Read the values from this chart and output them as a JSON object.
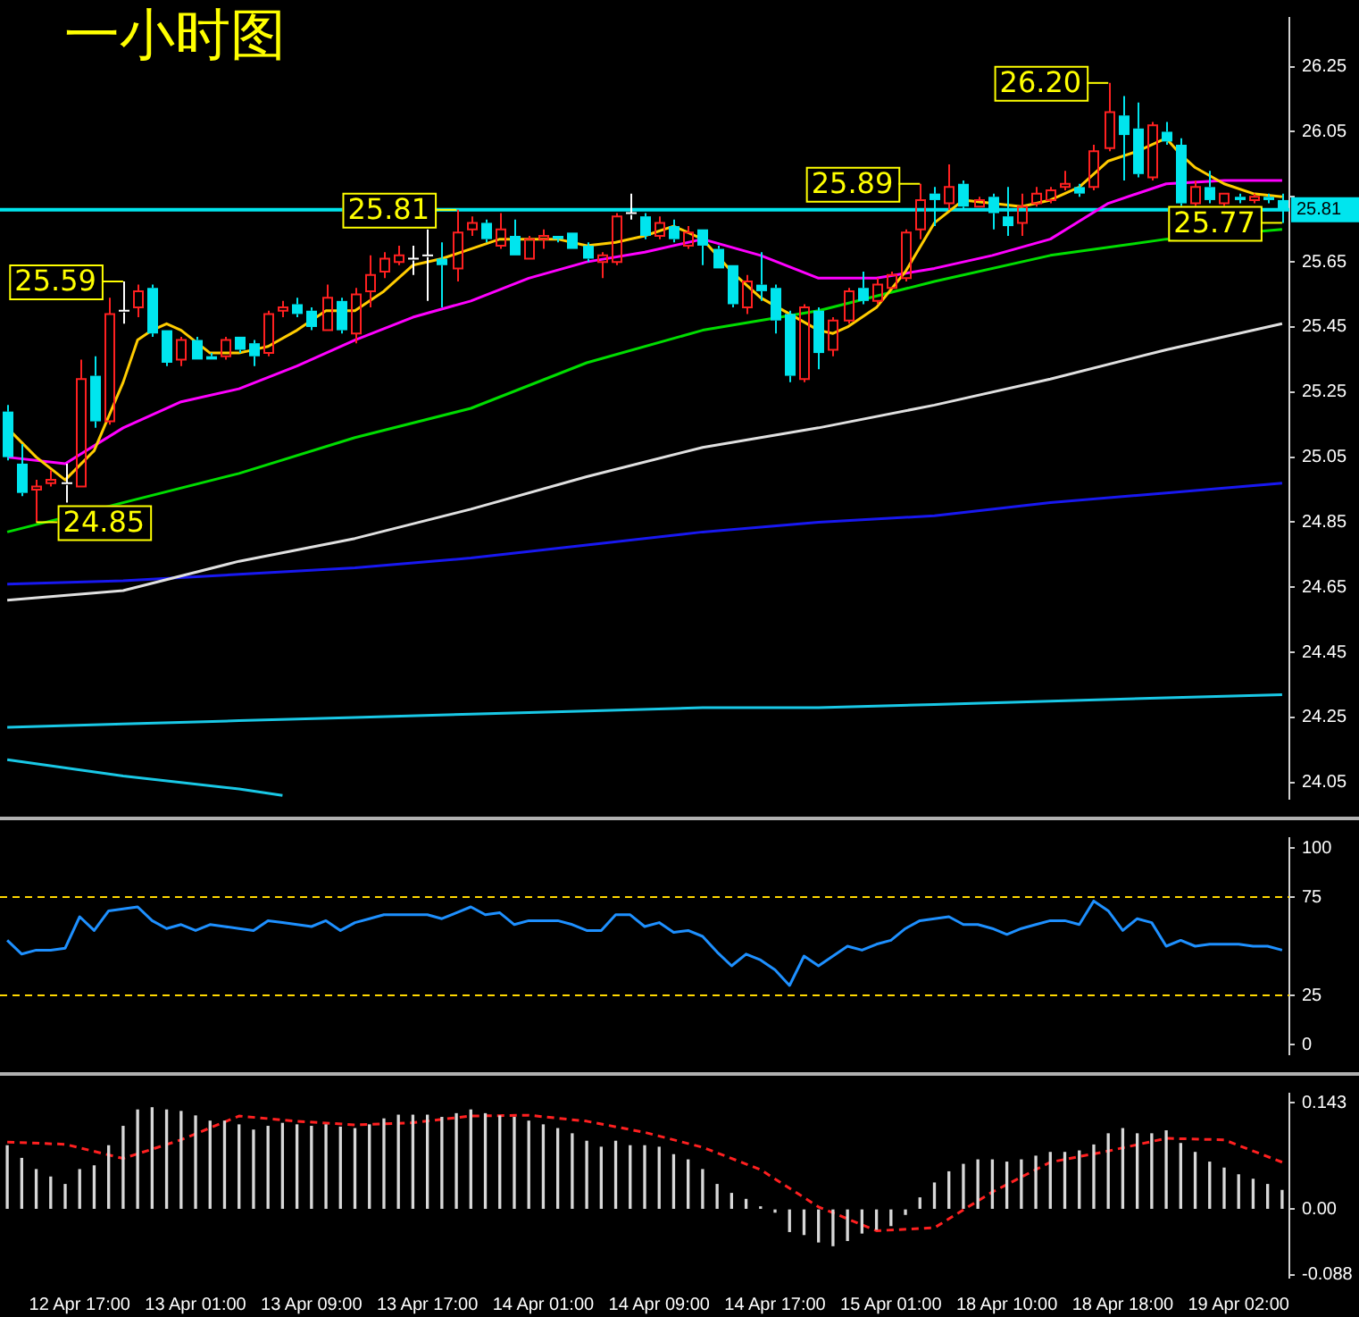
{
  "chart_data": [
    {
      "type": "candlestick",
      "title": "一小时图",
      "tick_labels": "y",
      "categories": [
        null,
        null,
        null,
        null,
        null,
        null,
        null,
        null,
        null,
        null,
        null,
        null,
        null,
        null,
        null,
        null,
        null,
        null,
        null,
        null,
        null,
        null,
        null,
        null,
        null,
        null,
        null,
        null,
        null,
        null,
        null,
        null,
        null,
        null,
        null,
        null,
        null,
        null,
        null,
        null,
        null,
        null,
        null,
        null,
        null,
        null,
        null,
        null,
        null,
        null,
        null,
        null,
        null,
        null,
        null,
        null,
        null,
        null,
        null,
        null,
        null,
        null,
        null,
        null,
        null,
        null,
        null,
        null,
        null,
        null,
        null,
        null,
        null,
        null,
        null,
        null,
        null,
        null,
        null,
        null,
        null,
        null,
        null,
        null,
        null,
        null,
        null,
        null,
        null
      ],
      "ohlc": [
        [
          25.19,
          25.21,
          25.04,
          25.05
        ],
        [
          25.03,
          25.09,
          24.93,
          24.94
        ],
        [
          24.95,
          24.98,
          24.85,
          24.96
        ],
        [
          24.97,
          25.01,
          24.96,
          24.98
        ],
        [
          24.97,
          25.03,
          24.91,
          24.97
        ],
        [
          24.96,
          25.35,
          24.96,
          25.29
        ],
        [
          25.3,
          25.36,
          25.14,
          25.16
        ],
        [
          25.16,
          25.54,
          25.15,
          25.49
        ],
        [
          25.5,
          25.59,
          25.46,
          25.5
        ],
        [
          25.51,
          25.58,
          25.48,
          25.56
        ],
        [
          25.57,
          25.58,
          25.42,
          25.43
        ],
        [
          25.44,
          25.44,
          25.33,
          25.34
        ],
        [
          25.35,
          25.42,
          25.33,
          25.41
        ],
        [
          25.41,
          25.42,
          25.35,
          25.35
        ],
        [
          25.36,
          25.37,
          25.35,
          25.35
        ],
        [
          25.36,
          25.42,
          25.35,
          25.41
        ],
        [
          25.42,
          25.42,
          25.37,
          25.38
        ],
        [
          25.4,
          25.41,
          25.33,
          25.36
        ],
        [
          25.37,
          25.5,
          25.36,
          25.49
        ],
        [
          25.5,
          25.53,
          25.48,
          25.51
        ],
        [
          25.52,
          25.54,
          25.48,
          25.49
        ],
        [
          25.5,
          25.51,
          25.44,
          25.45
        ],
        [
          25.44,
          25.58,
          25.44,
          25.54
        ],
        [
          25.53,
          25.54,
          25.43,
          25.44
        ],
        [
          25.43,
          25.57,
          25.4,
          25.55
        ],
        [
          25.56,
          25.67,
          25.51,
          25.61
        ],
        [
          25.62,
          25.68,
          25.6,
          25.66
        ],
        [
          25.65,
          25.7,
          25.64,
          25.67
        ],
        [
          25.66,
          25.7,
          25.61,
          25.66
        ],
        [
          25.67,
          25.75,
          25.53,
          25.67
        ],
        [
          25.66,
          25.71,
          25.51,
          25.64
        ],
        [
          25.63,
          25.81,
          25.59,
          25.74
        ],
        [
          25.75,
          25.79,
          25.73,
          25.77
        ],
        [
          25.77,
          25.78,
          25.71,
          25.72
        ],
        [
          25.7,
          25.8,
          25.69,
          25.75
        ],
        [
          25.73,
          25.78,
          25.67,
          25.67
        ],
        [
          25.66,
          25.73,
          25.66,
          25.72
        ],
        [
          25.72,
          25.75,
          25.69,
          25.73
        ],
        [
          25.73,
          25.73,
          25.71,
          25.72
        ],
        [
          25.74,
          25.74,
          25.69,
          25.69
        ],
        [
          25.7,
          25.71,
          25.65,
          25.66
        ],
        [
          25.65,
          25.68,
          25.6,
          25.67
        ],
        [
          25.65,
          25.8,
          25.64,
          25.79
        ],
        [
          25.8,
          25.86,
          25.78,
          25.8
        ],
        [
          25.79,
          25.8,
          25.72,
          25.73
        ],
        [
          25.73,
          25.79,
          25.72,
          25.77
        ],
        [
          25.76,
          25.78,
          25.71,
          25.72
        ],
        [
          25.7,
          25.76,
          25.69,
          25.74
        ],
        [
          25.75,
          25.75,
          25.64,
          25.7
        ],
        [
          25.69,
          25.7,
          25.63,
          25.63
        ],
        [
          25.64,
          25.64,
          25.51,
          25.52
        ],
        [
          25.51,
          25.61,
          25.49,
          25.59
        ],
        [
          25.58,
          25.68,
          25.53,
          25.56
        ],
        [
          25.57,
          25.58,
          25.43,
          25.47
        ],
        [
          25.49,
          25.5,
          25.28,
          25.3
        ],
        [
          25.29,
          25.52,
          25.28,
          25.51
        ],
        [
          25.5,
          25.51,
          25.32,
          25.37
        ],
        [
          25.38,
          25.48,
          25.36,
          25.47
        ],
        [
          25.47,
          25.57,
          25.46,
          25.56
        ],
        [
          25.57,
          25.62,
          25.52,
          25.53
        ],
        [
          25.53,
          25.6,
          25.52,
          25.58
        ],
        [
          25.57,
          25.62,
          25.57,
          25.61
        ],
        [
          25.6,
          25.75,
          25.59,
          25.74
        ],
        [
          25.75,
          25.89,
          25.72,
          25.84
        ],
        [
          25.86,
          25.88,
          25.76,
          25.84
        ],
        [
          25.83,
          25.95,
          25.81,
          25.88
        ],
        [
          25.89,
          25.9,
          25.81,
          25.82
        ],
        [
          25.82,
          25.85,
          25.82,
          25.84
        ],
        [
          25.85,
          25.86,
          25.75,
          25.8
        ],
        [
          25.79,
          25.88,
          25.73,
          25.76
        ],
        [
          25.77,
          25.86,
          25.73,
          25.82
        ],
        [
          25.83,
          25.88,
          25.82,
          25.86
        ],
        [
          25.84,
          25.88,
          25.83,
          25.87
        ],
        [
          25.88,
          25.93,
          25.87,
          25.89
        ],
        [
          25.88,
          25.89,
          25.85,
          25.86
        ],
        [
          25.88,
          26.01,
          25.87,
          25.99
        ],
        [
          26.0,
          26.2,
          25.99,
          26.11
        ],
        [
          26.1,
          26.16,
          25.9,
          26.04
        ],
        [
          26.06,
          26.14,
          25.91,
          25.92
        ],
        [
          25.91,
          26.08,
          25.9,
          26.07
        ],
        [
          26.05,
          26.08,
          26.01,
          26.02
        ],
        [
          26.01,
          26.03,
          25.82,
          25.83
        ],
        [
          25.83,
          25.9,
          25.82,
          25.88
        ],
        [
          25.88,
          25.93,
          25.83,
          25.84
        ],
        [
          25.83,
          25.86,
          25.82,
          25.86
        ],
        [
          25.85,
          25.86,
          25.83,
          25.84
        ],
        [
          25.84,
          25.86,
          25.83,
          25.85
        ],
        [
          25.85,
          25.86,
          25.83,
          25.84
        ],
        [
          25.84,
          25.86,
          25.77,
          25.81
        ]
      ],
      "colors": [
        "#00e5ee",
        "#00e5ee",
        "#ff2020",
        "#ff2020",
        "#ffffff",
        "#ff2020",
        "#00e5ee",
        "#ff2020",
        "#ffffff",
        "#ff2020",
        "#00e5ee",
        "#00e5ee",
        "#ff2020",
        "#00e5ee",
        "#00e5ee",
        "#ff2020",
        "#00e5ee",
        "#00e5ee",
        "#ff2020",
        "#ff2020",
        "#00e5ee",
        "#00e5ee",
        "#ff2020",
        "#00e5ee",
        "#ff2020",
        "#ff2020",
        "#ff2020",
        "#ff2020",
        "#ffffff",
        "#ffffff",
        "#00e5ee",
        "#ff2020",
        "#ff2020",
        "#00e5ee",
        "#ff2020",
        "#00e5ee",
        "#ff2020",
        "#ff2020",
        "#00e5ee",
        "#00e5ee",
        "#00e5ee",
        "#ff2020",
        "#ff2020",
        "#ffffff",
        "#00e5ee",
        "#ff2020",
        "#00e5ee",
        "#ff2020",
        "#00e5ee",
        "#00e5ee",
        "#00e5ee",
        "#ff2020",
        "#00e5ee",
        "#00e5ee",
        "#00e5ee",
        "#ff2020",
        "#00e5ee",
        "#ff2020",
        "#ff2020",
        "#00e5ee",
        "#ff2020",
        "#ff2020",
        "#ff2020",
        "#ff2020",
        "#00e5ee",
        "#ff2020",
        "#00e5ee",
        "#ff2020",
        "#00e5ee",
        "#00e5ee",
        "#ff2020",
        "#ff2020",
        "#ff2020",
        "#ff2020",
        "#00e5ee",
        "#ff2020",
        "#ff2020",
        "#00e5ee",
        "#00e5ee",
        "#ff2020",
        "#00e5ee",
        "#00e5ee",
        "#ff2020",
        "#00e5ee",
        "#ff2020",
        "#00e5ee",
        "#ff2020",
        "#00e5ee",
        "#00e5ee"
      ],
      "series": [
        {
          "type": "line",
          "color": "#ffcc00",
          "values": [
            25.14,
            null,
            25.05,
            null,
            24.98,
            null,
            25.07,
            null,
            25.28,
            25.41,
            25.44,
            25.46,
            25.44,
            null,
            25.37,
            null,
            25.37,
            null,
            25.39,
            null,
            25.44,
            null,
            25.5,
            null,
            25.5,
            null,
            25.56,
            null,
            25.64,
            null,
            25.66,
            null,
            25.69,
            null,
            25.72,
            null,
            25.72,
            null,
            25.72,
            null,
            25.7,
            null,
            25.71,
            null,
            25.73,
            null,
            25.76,
            null,
            25.72,
            null,
            25.62,
            null,
            25.54,
            null,
            25.49,
            null,
            25.44,
            25.43,
            25.45,
            null,
            25.51,
            null,
            25.62,
            null,
            25.77,
            null,
            25.84,
            null,
            25.83,
            null,
            25.82,
            null,
            25.84,
            null,
            25.88,
            null,
            25.96,
            null,
            25.99,
            null,
            26.03,
            25.98,
            25.94,
            null,
            25.89,
            null,
            25.86,
            null,
            25.85
          ]
        },
        {
          "type": "line",
          "color": "#ff00ff",
          "values": [
            25.05,
            null,
            null,
            null,
            25.03,
            null,
            null,
            null,
            25.14,
            null,
            null,
            null,
            25.22,
            null,
            null,
            null,
            25.26,
            null,
            null,
            null,
            25.33,
            null,
            null,
            null,
            25.41,
            null,
            null,
            null,
            25.48,
            null,
            null,
            null,
            25.53,
            null,
            null,
            null,
            25.6,
            null,
            null,
            null,
            25.65,
            null,
            null,
            null,
            25.68,
            null,
            null,
            null,
            25.72,
            null,
            null,
            null,
            25.67,
            null,
            null,
            null,
            25.6,
            null,
            null,
            null,
            25.6,
            null,
            null,
            null,
            25.63,
            null,
            null,
            null,
            25.67,
            null,
            null,
            null,
            25.72,
            null,
            null,
            null,
            25.83,
            null,
            null,
            null,
            25.89,
            null,
            null,
            null,
            25.9,
            null,
            null,
            null,
            25.9
          ]
        },
        {
          "type": "line",
          "color": "#00dd00",
          "values": [
            24.82,
            null,
            null,
            null,
            null,
            null,
            null,
            null,
            null,
            null,
            null,
            null,
            null,
            null,
            null,
            null,
            25.0,
            null,
            null,
            null,
            null,
            null,
            null,
            null,
            25.11,
            null,
            null,
            null,
            null,
            null,
            null,
            null,
            25.2,
            null,
            null,
            null,
            null,
            null,
            null,
            null,
            25.34,
            null,
            null,
            null,
            null,
            null,
            null,
            null,
            25.44,
            null,
            null,
            null,
            null,
            null,
            null,
            null,
            25.5,
            null,
            null,
            null,
            null,
            null,
            null,
            null,
            25.59,
            null,
            null,
            null,
            null,
            null,
            null,
            null,
            25.67,
            null,
            null,
            null,
            null,
            null,
            null,
            null,
            25.72,
            null,
            null,
            null,
            null,
            null,
            null,
            null,
            25.75
          ]
        },
        {
          "type": "line",
          "color": "#e0e0e0",
          "values": [
            24.61,
            null,
            null,
            null,
            null,
            null,
            null,
            null,
            24.64,
            null,
            null,
            null,
            null,
            null,
            null,
            null,
            24.73,
            null,
            null,
            null,
            null,
            null,
            null,
            null,
            24.8,
            null,
            null,
            null,
            null,
            null,
            null,
            null,
            24.89,
            null,
            null,
            null,
            null,
            null,
            null,
            null,
            24.99,
            null,
            null,
            null,
            null,
            null,
            null,
            null,
            25.08,
            null,
            null,
            null,
            null,
            null,
            null,
            null,
            25.14,
            null,
            null,
            null,
            null,
            null,
            null,
            null,
            25.21,
            null,
            null,
            null,
            null,
            null,
            null,
            null,
            25.29,
            null,
            null,
            null,
            null,
            null,
            null,
            null,
            25.38,
            null,
            null,
            null,
            null,
            null,
            null,
            null,
            25.46
          ]
        },
        {
          "type": "line",
          "color": "#1818f0",
          "values": [
            24.66,
            null,
            null,
            null,
            null,
            null,
            null,
            null,
            24.67,
            null,
            null,
            null,
            null,
            null,
            null,
            null,
            24.69,
            null,
            null,
            null,
            null,
            null,
            null,
            null,
            24.71,
            null,
            null,
            null,
            null,
            null,
            null,
            null,
            24.74,
            null,
            null,
            null,
            null,
            null,
            null,
            null,
            24.78,
            null,
            null,
            null,
            null,
            null,
            null,
            null,
            24.82,
            null,
            null,
            null,
            null,
            null,
            null,
            null,
            24.85,
            null,
            null,
            null,
            null,
            null,
            null,
            null,
            24.87,
            null,
            null,
            null,
            null,
            null,
            null,
            null,
            24.91,
            null,
            null,
            null,
            null,
            null,
            null,
            null,
            24.94,
            null,
            null,
            null,
            null,
            null,
            null,
            null,
            24.97
          ]
        },
        {
          "type": "line",
          "color": "#19c8e6",
          "values": [
            24.22,
            null,
            null,
            null,
            null,
            null,
            null,
            null,
            24.23,
            null,
            null,
            null,
            null,
            null,
            null,
            null,
            24.24,
            null,
            null,
            null,
            null,
            null,
            null,
            null,
            24.25,
            null,
            null,
            null,
            null,
            null,
            null,
            null,
            24.26,
            null,
            null,
            null,
            null,
            null,
            null,
            null,
            24.27,
            null,
            null,
            null,
            null,
            null,
            null,
            null,
            24.28,
            null,
            null,
            null,
            null,
            null,
            null,
            null,
            24.28,
            null,
            null,
            null,
            null,
            null,
            null,
            null,
            24.29,
            null,
            null,
            null,
            null,
            null,
            null,
            null,
            24.3,
            null,
            null,
            null,
            null,
            null,
            null,
            null,
            24.31,
            null,
            null,
            null,
            null,
            null,
            null,
            null,
            24.32
          ]
        },
        {
          "type": "line",
          "color": "#19c8e6",
          "values": [
            24.12,
            null,
            null,
            null,
            null,
            null,
            null,
            null,
            24.07,
            null,
            null,
            null,
            null,
            null,
            null,
            null,
            24.03,
            null,
            null,
            24.01,
            null,
            null,
            null,
            null,
            null,
            null,
            null,
            null,
            null,
            null,
            null,
            null,
            null,
            null,
            null,
            null,
            null,
            null,
            null,
            null,
            null,
            null,
            null,
            null,
            null,
            null,
            null,
            null,
            null,
            null,
            null,
            null,
            null,
            null,
            null,
            null,
            null,
            null,
            null,
            null,
            null,
            null,
            null,
            null,
            null,
            null,
            null,
            null,
            null,
            null,
            null,
            null,
            null,
            null,
            null,
            null,
            null,
            null,
            null,
            null,
            null,
            null,
            null,
            null,
            null,
            null,
            null,
            null,
            null
          ]
        }
      ],
      "ylim": [
        24.0,
        26.4
      ],
      "yticks": [
        24.05,
        24.25,
        24.45,
        24.65,
        24.85,
        25.05,
        25.25,
        25.45,
        25.65,
        {
          "value": 25.85,
          "label": null
        },
        26.05,
        26.25
      ],
      "ref_lines": [
        {
          "axis": "y",
          "value": 25.81,
          "label": "25.81",
          "color": "#00e5ee"
        }
      ],
      "annotations": [
        "25.59",
        "24.85",
        "25.81",
        "25.89",
        "26.20",
        "25.77"
      ]
    },
    {
      "type": "line",
      "tick_labels": "y",
      "categories": [
        null,
        null,
        null,
        null,
        null,
        null,
        null,
        null,
        null,
        null,
        null,
        null,
        null,
        null,
        null,
        null,
        null,
        null,
        null,
        null,
        null,
        null,
        null,
        null,
        null,
        null,
        null,
        null,
        null,
        null,
        null,
        null,
        null,
        null,
        null,
        null,
        null,
        null,
        null,
        null,
        null,
        null,
        null,
        null,
        null,
        null,
        null,
        null,
        null,
        null,
        null,
        null,
        null,
        null,
        null,
        null,
        null,
        null,
        null,
        null,
        null,
        null,
        null,
        null,
        null,
        null,
        null,
        null,
        null,
        null,
        null,
        null,
        null,
        null,
        null,
        null,
        null,
        null,
        null,
        null,
        null,
        null,
        null,
        null,
        null,
        null,
        null,
        null,
        null
      ],
      "series": [
        {
          "color": "#1e90ff",
          "values": [
            53,
            46,
            48,
            48,
            49,
            65,
            58,
            68,
            69,
            70,
            63,
            59,
            61,
            58,
            61,
            60,
            59,
            58,
            63,
            62,
            61,
            60,
            63,
            58,
            62,
            64,
            66,
            66,
            66,
            66,
            64,
            67,
            70,
            66,
            67,
            61,
            63,
            63,
            63,
            61,
            58,
            58,
            66,
            66,
            60,
            62,
            57,
            58,
            55,
            47,
            40,
            46,
            43,
            38,
            30,
            45,
            40,
            45,
            50,
            48,
            51,
            53,
            59,
            63,
            64,
            65,
            61,
            61,
            59,
            56,
            59,
            61,
            63,
            63,
            61,
            73,
            68,
            58,
            64,
            62,
            50,
            53,
            50,
            51,
            51,
            51,
            50,
            50,
            48
          ]
        }
      ],
      "ylim": [
        -5,
        105
      ],
      "yticks": [
        0,
        25,
        75,
        100
      ],
      "ref_lines": [
        {
          "axis": "y",
          "value": 75,
          "color": "#ffd700",
          "line_style": "dashed"
        },
        {
          "axis": "y",
          "value": 25,
          "color": "#ffd700",
          "line_style": "dashed"
        }
      ]
    },
    {
      "type": "bar",
      "categories": [
        null,
        null,
        null,
        null,
        null,
        "12 Apr 17:00",
        null,
        null,
        null,
        null,
        null,
        null,
        null,
        "13 Apr 01:00",
        null,
        null,
        null,
        null,
        null,
        null,
        null,
        "13 Apr 09:00",
        null,
        null,
        null,
        null,
        null,
        null,
        null,
        "13 Apr 17:00",
        null,
        null,
        null,
        null,
        null,
        null,
        null,
        "14 Apr 01:00",
        null,
        null,
        null,
        null,
        null,
        null,
        null,
        "14 Apr 09:00",
        null,
        null,
        null,
        null,
        null,
        null,
        null,
        "14 Apr 17:00",
        null,
        null,
        null,
        null,
        null,
        null,
        null,
        "15 Apr 01:00",
        null,
        null,
        null,
        null,
        null,
        null,
        null,
        "18 Apr 10:00",
        null,
        null,
        null,
        null,
        null,
        null,
        null,
        "18 Apr 18:00",
        null,
        null,
        null,
        null,
        null,
        null,
        null,
        "19 Apr 02:00",
        null,
        null,
        null
      ],
      "series": [
        {
          "type": "bar",
          "color": "#d8d8d8",
          "values": [
            0.085,
            0.068,
            0.053,
            0.043,
            0.033,
            0.053,
            0.058,
            0.085,
            0.111,
            0.133,
            0.136,
            0.133,
            0.131,
            0.125,
            0.118,
            0.118,
            0.113,
            0.106,
            0.111,
            0.115,
            0.113,
            0.111,
            0.113,
            0.11,
            0.108,
            0.113,
            0.121,
            0.126,
            0.126,
            0.126,
            0.123,
            0.128,
            0.133,
            0.128,
            0.125,
            0.123,
            0.118,
            0.113,
            0.108,
            0.101,
            0.091,
            0.083,
            0.091,
            0.085,
            0.085,
            0.083,
            0.073,
            0.066,
            0.053,
            0.033,
            0.021,
            0.013,
            0.003,
            -0.004,
            -0.03,
            -0.034,
            -0.044,
            -0.049,
            -0.042,
            -0.032,
            -0.027,
            -0.022,
            -0.007,
            0.015,
            0.035,
            0.05,
            0.06,
            0.066,
            0.066,
            0.063,
            0.066,
            0.071,
            0.076,
            0.076,
            0.078,
            0.086,
            0.101,
            0.108,
            0.101,
            0.101,
            0.105,
            0.088,
            0.076,
            0.063,
            0.055,
            0.046,
            0.04,
            0.033,
            0.025
          ]
        },
        {
          "type": "line",
          "color": "#ff2020",
          "line_style": "dashed",
          "values": [
            0.09,
            null,
            null,
            null,
            0.087,
            null,
            null,
            null,
            0.068,
            null,
            null,
            null,
            0.093,
            null,
            null,
            null,
            0.125,
            null,
            null,
            null,
            0.118,
            null,
            null,
            null,
            0.113,
            null,
            null,
            null,
            0.116,
            null,
            null,
            null,
            0.125,
            null,
            null,
            null,
            0.126,
            null,
            null,
            null,
            0.118,
            null,
            null,
            null,
            0.103,
            null,
            null,
            null,
            0.083,
            null,
            null,
            null,
            0.053,
            null,
            null,
            null,
            0.003,
            null,
            null,
            null,
            -0.029,
            null,
            null,
            null,
            -0.025,
            null,
            null,
            null,
            0.023,
            null,
            null,
            null,
            0.063,
            null,
            null,
            null,
            0.078,
            null,
            null,
            null,
            0.095,
            null,
            null,
            null,
            0.093,
            null,
            null,
            null,
            0.063
          ]
        }
      ],
      "ylim": [
        -0.092,
        0.155
      ],
      "yticks": [
        -0.088,
        {
          "value": 0,
          "label": "0.00"
        },
        0.143
      ]
    }
  ]
}
